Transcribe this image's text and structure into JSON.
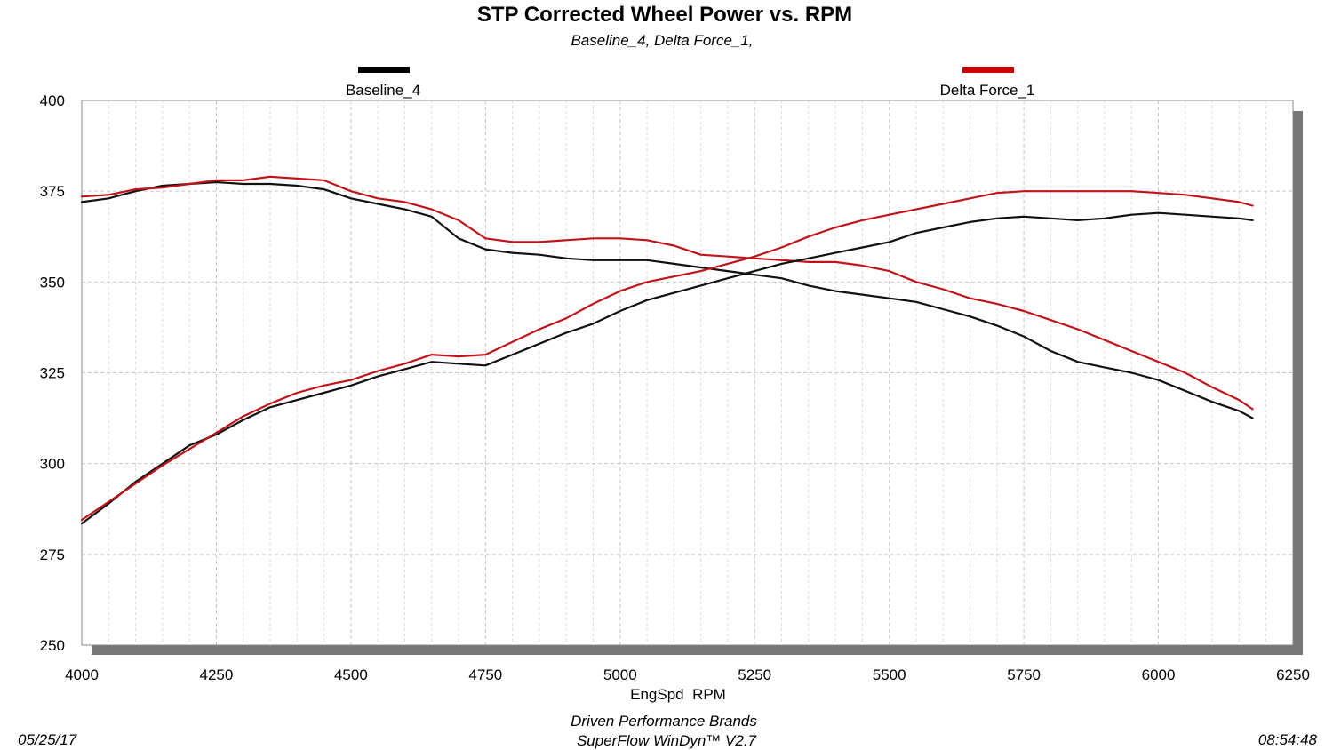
{
  "chart_data": {
    "type": "line",
    "title": "STP Corrected Wheel Power vs. RPM",
    "subtitle": "Baseline_4, Delta Force_1,",
    "xlabel": "EngSpd  RPM",
    "ylabel": "",
    "xlim": [
      4000,
      6250
    ],
    "ylim": [
      250,
      400
    ],
    "x_ticks": [
      4000,
      4250,
      4500,
      4750,
      5000,
      5250,
      5500,
      5750,
      6000,
      6250
    ],
    "y_ticks": [
      250,
      275,
      300,
      325,
      350,
      375,
      400
    ],
    "grid": true,
    "legend": [
      {
        "name": "Baseline_4",
        "color": "#000000"
      },
      {
        "name": "Delta Force_1",
        "color": "#cc0000"
      }
    ],
    "series": [
      {
        "name": "Baseline_4",
        "kind": "falling",
        "color": "#111111",
        "x": [
          4000,
          4050,
          4100,
          4150,
          4200,
          4250,
          4300,
          4350,
          4400,
          4450,
          4500,
          4550,
          4600,
          4650,
          4700,
          4750,
          4800,
          4850,
          4900,
          4950,
          5000,
          5050,
          5100,
          5150,
          5200,
          5250,
          5300,
          5350,
          5400,
          5450,
          5500,
          5550,
          5600,
          5650,
          5700,
          5750,
          5800,
          5850,
          5900,
          5950,
          6000,
          6050,
          6100,
          6150,
          6175
        ],
        "y": [
          372,
          373,
          375,
          376.5,
          377,
          377.5,
          377,
          377,
          376.5,
          375.5,
          373,
          371.5,
          370,
          368,
          362,
          359,
          358,
          357.5,
          356.5,
          356,
          356,
          356,
          355,
          354,
          353,
          352,
          351,
          349,
          347.5,
          346.5,
          345.5,
          344.5,
          342.5,
          340.5,
          338,
          335,
          331,
          328,
          326.5,
          325,
          323,
          320,
          317,
          314.5,
          312.5
        ]
      },
      {
        "name": "Delta Force_1",
        "kind": "falling",
        "color": "#c0141c",
        "x": [
          4000,
          4050,
          4100,
          4150,
          4200,
          4250,
          4300,
          4350,
          4400,
          4450,
          4500,
          4550,
          4600,
          4650,
          4700,
          4750,
          4800,
          4850,
          4900,
          4950,
          5000,
          5050,
          5100,
          5150,
          5200,
          5250,
          5300,
          5350,
          5400,
          5450,
          5500,
          5550,
          5600,
          5650,
          5700,
          5750,
          5800,
          5850,
          5900,
          5950,
          6000,
          6050,
          6100,
          6150,
          6175
        ],
        "y": [
          373.5,
          374,
          375.5,
          376,
          377,
          378,
          378,
          379,
          378.5,
          378,
          375,
          373,
          372,
          370,
          367,
          362,
          361,
          361,
          361.5,
          362,
          362,
          361.5,
          360,
          357.5,
          357,
          356.5,
          356,
          355.5,
          355.5,
          354.5,
          353,
          350,
          348,
          345.5,
          344,
          342,
          339.5,
          337,
          334,
          331,
          328,
          325,
          321,
          317.5,
          315
        ]
      },
      {
        "name": "Baseline_4",
        "kind": "rising",
        "color": "#111111",
        "x": [
          4000,
          4050,
          4100,
          4150,
          4200,
          4250,
          4300,
          4350,
          4400,
          4450,
          4500,
          4550,
          4600,
          4650,
          4700,
          4750,
          4800,
          4850,
          4900,
          4950,
          5000,
          5050,
          5100,
          5150,
          5200,
          5250,
          5300,
          5350,
          5400,
          5450,
          5500,
          5550,
          5600,
          5650,
          5700,
          5750,
          5800,
          5850,
          5900,
          5950,
          6000,
          6050,
          6100,
          6150,
          6175
        ],
        "y": [
          283.5,
          289,
          295,
          300,
          305,
          308,
          312,
          315.5,
          317.5,
          319.5,
          321.5,
          324,
          326,
          328,
          327.5,
          327,
          330,
          333,
          336,
          338.5,
          342,
          345,
          347,
          349,
          351,
          353,
          355,
          356.5,
          358,
          359.5,
          361,
          363.5,
          365,
          366.5,
          367.5,
          368,
          367.5,
          367,
          367.5,
          368.5,
          369,
          368.5,
          368,
          367.5,
          367
        ]
      },
      {
        "name": "Delta Force_1",
        "kind": "rising",
        "color": "#c0141c",
        "x": [
          4000,
          4050,
          4100,
          4150,
          4200,
          4250,
          4300,
          4350,
          4400,
          4450,
          4500,
          4550,
          4600,
          4650,
          4700,
          4750,
          4800,
          4850,
          4900,
          4950,
          5000,
          5050,
          5100,
          5150,
          5200,
          5250,
          5300,
          5350,
          5400,
          5450,
          5500,
          5550,
          5600,
          5650,
          5700,
          5750,
          5800,
          5850,
          5900,
          5950,
          6000,
          6050,
          6100,
          6150,
          6175
        ],
        "y": [
          284.5,
          289.5,
          294.5,
          299.5,
          304,
          308.5,
          313,
          316.5,
          319.5,
          321.5,
          323,
          325.5,
          327.5,
          330,
          329.5,
          330,
          333.5,
          337,
          340,
          344,
          347.5,
          350,
          351.5,
          353,
          355,
          357,
          359.5,
          362.5,
          365,
          367,
          368.5,
          370,
          371.5,
          373,
          374.5,
          375,
          375,
          375,
          375,
          375,
          374.5,
          374,
          373,
          372,
          371
        ]
      }
    ]
  },
  "footer": {
    "date": "05/25/17",
    "company": "Driven Performance Brands",
    "software": "SuperFlow WinDyn™  V2.7",
    "time": "08:54:48"
  }
}
